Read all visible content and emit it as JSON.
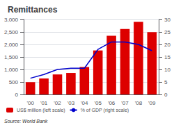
{
  "chart_data": {
    "type": "bar",
    "title": "Remittances",
    "categories": [
      "'00",
      "'01",
      "'02",
      "'03",
      "'04",
      "'05",
      "'06",
      "'07",
      "'08",
      "'09"
    ],
    "series": [
      {
        "name": "US$ million (left scale)",
        "type": "bar",
        "color": "#dd0000",
        "values": [
          490,
          640,
          800,
          860,
          1100,
          1760,
          2350,
          2620,
          2900,
          2490
        ]
      },
      {
        "name": "% of GDP (right scale)",
        "type": "line",
        "color": "#0000cc",
        "axis": "y2",
        "values": [
          6.5,
          8.0,
          10.0,
          10.5,
          10.5,
          18.0,
          21.0,
          21.0,
          20.0,
          17.5
        ]
      }
    ],
    "ylim": [
      0,
      3000
    ],
    "yticks": [
      0,
      500,
      {
        "value": 1000,
        "label": "1,000"
      },
      {
        "value": 1500,
        "label": "1,500"
      },
      {
        "value": 2000,
        "label": "2,000"
      },
      {
        "value": 2500,
        "label": "2,500"
      },
      {
        "value": 3000,
        "label": "3,000"
      }
    ],
    "y2lim": [
      0,
      30
    ],
    "y2ticks": [
      0,
      5,
      10,
      15,
      20,
      25,
      30
    ],
    "grid": true,
    "legend": "bottom",
    "annotations": [
      "Source: World Bank"
    ]
  }
}
